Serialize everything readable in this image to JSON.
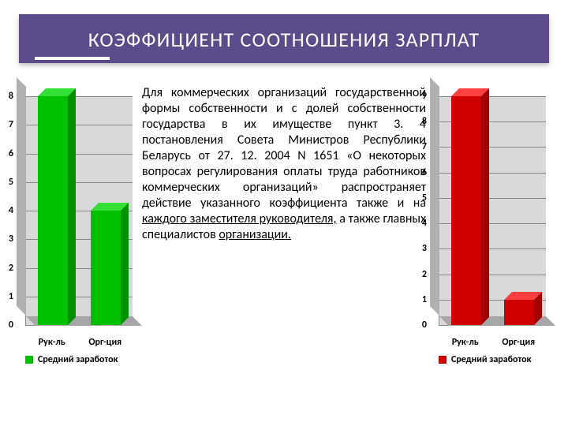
{
  "title": "КОЭФФИЦИЕНТ СООТНОШЕНИЯ ЗАРПЛАТ",
  "paragraph": "Для коммерческих организаций государственной формы собственности и с долей собственности государства в их имуществе пункт 3. 4 постановления Совета Министров Республики Беларусь от 27. 12. 2004 N 1651 «О некоторых вопросах регулирования оплаты труда работников коммерческих организаций» распространяет действие указанного коэффициента также и на ",
  "paragraph_u1": "каждого заместителя руководителя,",
  "paragraph_mid": " а также главных специалистов ",
  "paragraph_u2": "организации.",
  "chart_left": {
    "type": "bar",
    "categories": [
      "Рук-ль",
      "Орг-ция"
    ],
    "values": [
      8,
      4
    ],
    "bar_color_front": "#00c000",
    "bar_color_top": "#33e033",
    "bar_color_side": "#009000",
    "ylim_max": 8,
    "ytick_step": 1,
    "plot_back": "#d9d9d9",
    "legend_label": "Средний заработок",
    "legend_swatch": "#00c000"
  },
  "chart_right": {
    "type": "bar",
    "categories": [
      "Рук-ль",
      "Орг-ция"
    ],
    "values": [
      9,
      1
    ],
    "bar_color_front": "#d00000",
    "bar_color_top": "#ff4040",
    "bar_color_side": "#a00000",
    "ylim_max": 9,
    "ytick_step": 1,
    "plot_back": "#d9d9d9",
    "legend_label": "Средний заработок",
    "legend_swatch": "#d00000"
  }
}
